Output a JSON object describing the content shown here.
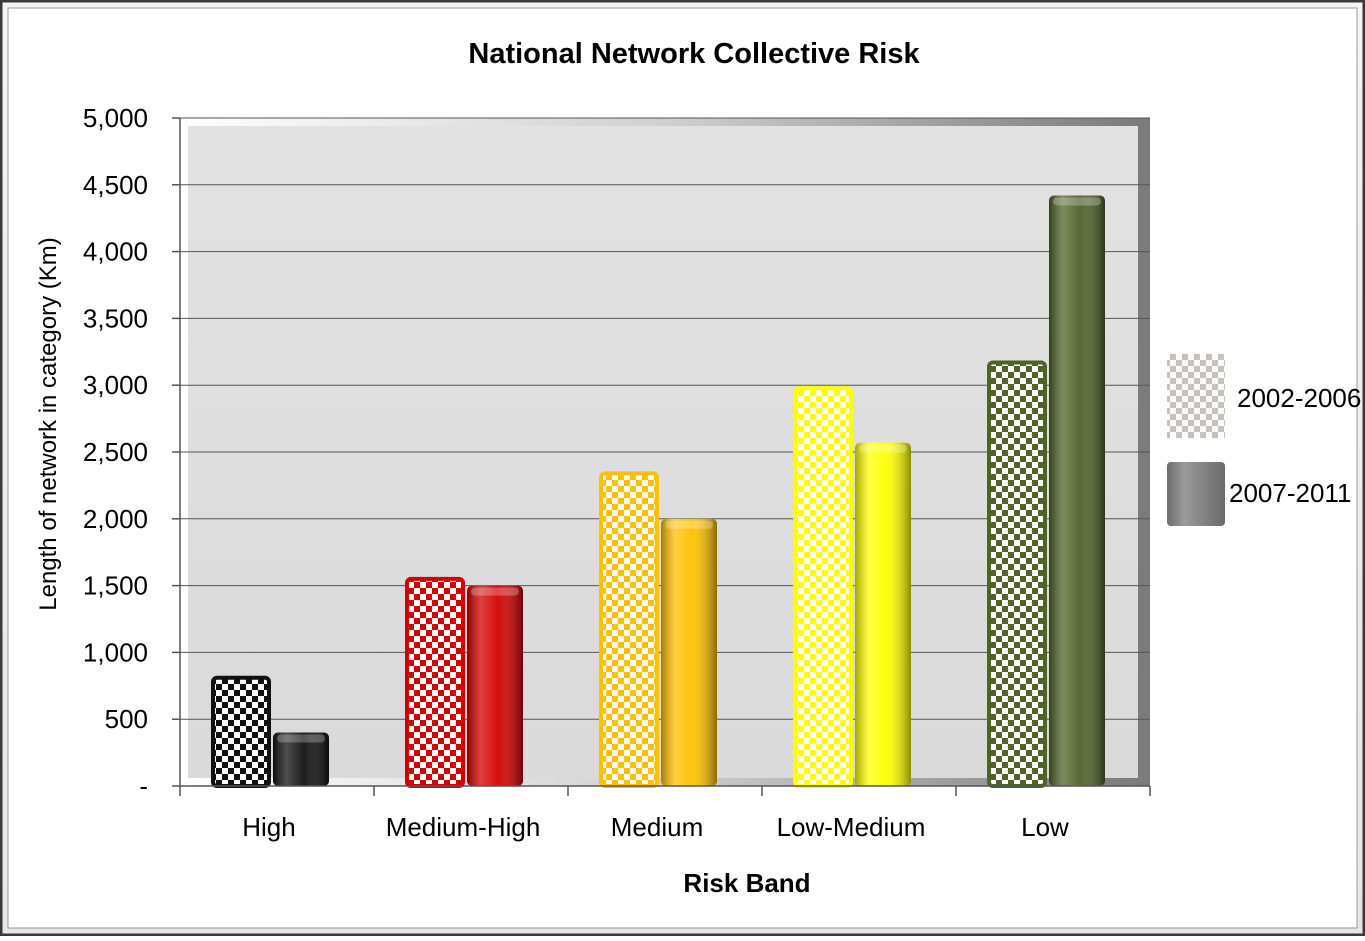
{
  "chart_data": {
    "type": "bar",
    "title": "National Network Collective Risk",
    "xlabel": "Risk Band",
    "ylabel": "Length of network in category (Km)",
    "categories": [
      "High",
      "Medium-High",
      "Medium",
      "Low-Medium",
      "Low"
    ],
    "series": [
      {
        "name": "2002-2006",
        "values": [
          810,
          1550,
          2340,
          2980,
          3170
        ]
      },
      {
        "name": "2007-2011",
        "values": [
          400,
          1500,
          2000,
          2570,
          4420
        ]
      }
    ],
    "ylim": [
      0,
      5000
    ],
    "yticks": [
      0,
      500,
      1000,
      1500,
      2000,
      2500,
      3000,
      3500,
      4000,
      4500,
      5000
    ],
    "ytick_labels": [
      "-",
      "500",
      "1,000",
      "1,500",
      "2,000",
      "2,500",
      "3,000",
      "3,500",
      "4,000",
      "4,500",
      "5,000"
    ],
    "category_colors": [
      "#111111",
      "#d40000",
      "#ffc000",
      "#ffff00",
      "#4f6228"
    ],
    "grid": true,
    "legend_position": "right"
  }
}
